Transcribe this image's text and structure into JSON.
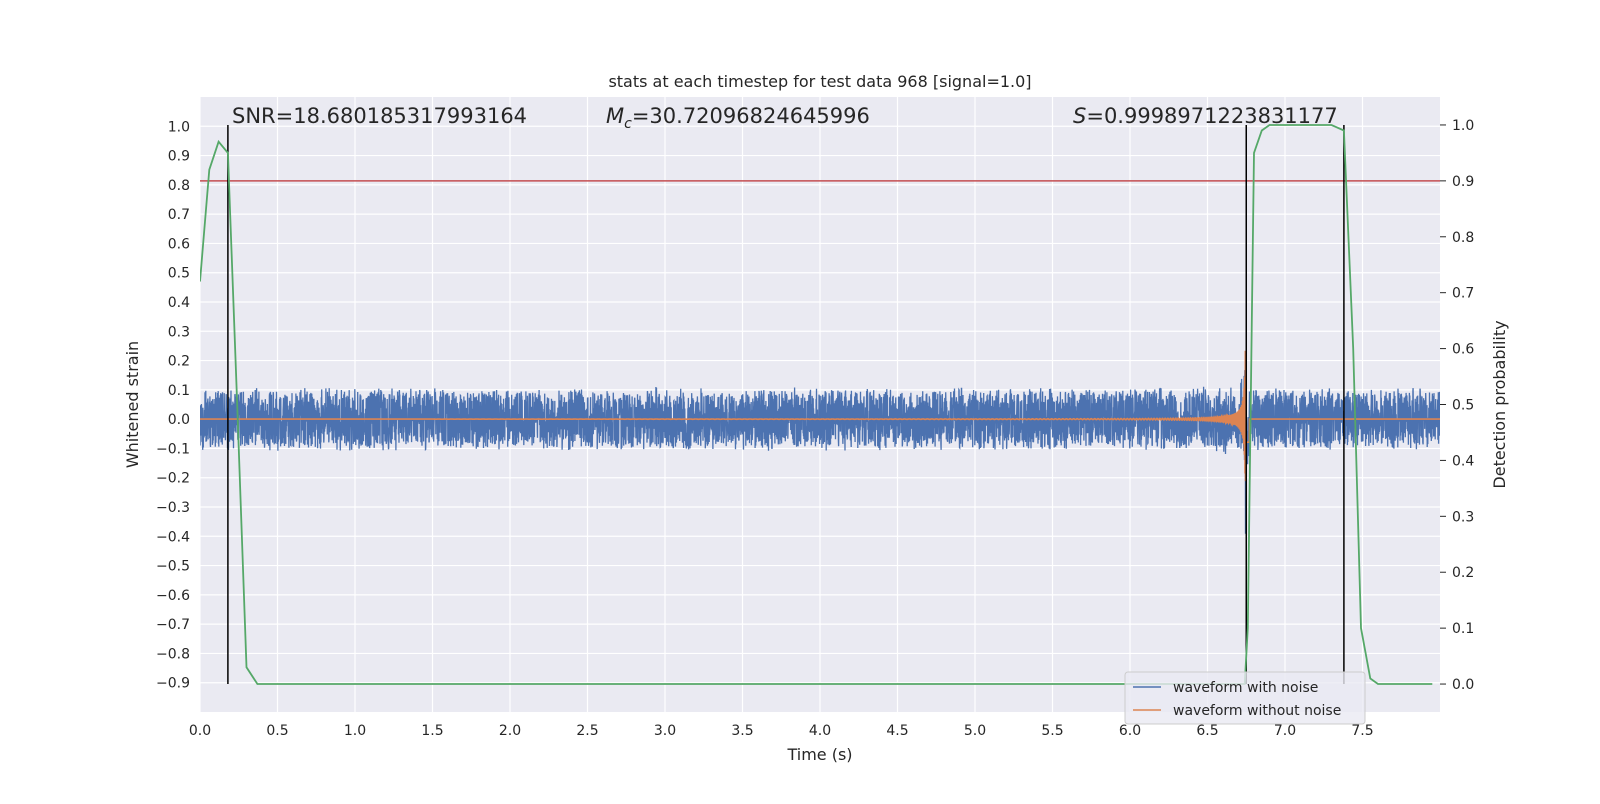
{
  "chart_data": {
    "type": "line",
    "title": "stats at each timestep for test data 968 [signal=1.0]",
    "xlabel": "Time (s)",
    "ylabel": "Whitened strain",
    "y2label": "Detection probability",
    "xlim": [
      0,
      8
    ],
    "ylim": [
      -1.0,
      1.1
    ],
    "y2lim": [
      -0.05,
      1.05
    ],
    "xticks": [
      0.0,
      0.5,
      1.0,
      1.5,
      2.0,
      2.5,
      3.0,
      3.5,
      4.0,
      4.5,
      5.0,
      5.5,
      6.0,
      6.5,
      7.0,
      7.5
    ],
    "yticks": [
      -0.9,
      -0.8,
      -0.7,
      -0.6,
      -0.5,
      -0.4,
      -0.3,
      -0.2,
      -0.1,
      0.0,
      0.1,
      0.2,
      0.3,
      0.4,
      0.5,
      0.6,
      0.7,
      0.8,
      0.9,
      1.0
    ],
    "y2ticks": [
      0.0,
      0.1,
      0.2,
      0.3,
      0.4,
      0.5,
      0.6,
      0.7,
      0.8,
      0.9,
      1.0
    ],
    "grid": true,
    "legend_position": "bottom-right",
    "annotations": {
      "snr": "SNR=18.680185317993164",
      "mc_symbol": "M",
      "mc_sub": "c",
      "mc_value": "=30.72096824645996",
      "s_symbol": "S",
      "s_value": "=0.9998971223831177"
    },
    "threshold": {
      "y2": 0.9,
      "color": "#c44e52"
    },
    "vertical_markers": [
      {
        "x": 0.18,
        "y2_from": 0.0,
        "y2_to": 1.0
      },
      {
        "x": 6.75,
        "y2_from": 0.0,
        "y2_to": 1.0
      },
      {
        "x": 7.38,
        "y2_from": 0.0,
        "y2_to": 1.0
      }
    ],
    "series": [
      {
        "name": "waveform with noise",
        "color": "#4c72b0",
        "noise_amplitude": 0.11,
        "merger_time": 6.75
      },
      {
        "name": "waveform without noise",
        "color": "#dd8452",
        "chirp_start": 1.5,
        "merger_time": 6.75
      },
      {
        "name": "detection probability",
        "color": "#55a868",
        "x": [
          0.0,
          0.06,
          0.12,
          0.18,
          0.24,
          0.3,
          0.37,
          0.5,
          1.0,
          2.0,
          3.0,
          4.0,
          5.0,
          6.0,
          6.5,
          6.7,
          6.74,
          6.76,
          6.8,
          6.85,
          6.9,
          7.0,
          7.1,
          7.2,
          7.3,
          7.38,
          7.44,
          7.49,
          7.55,
          7.6,
          7.7,
          7.8,
          7.95
        ],
        "y": [
          0.72,
          0.92,
          0.97,
          0.95,
          0.5,
          0.03,
          0.0,
          0.0,
          0.0,
          0.0,
          0.0,
          0.0,
          0.0,
          0.0,
          0.0,
          0.0,
          0.0,
          0.1,
          0.95,
          0.99,
          1.0,
          1.0,
          1.0,
          1.0,
          1.0,
          0.99,
          0.6,
          0.1,
          0.01,
          0.0,
          0.0,
          0.0,
          0.0
        ]
      }
    ]
  }
}
